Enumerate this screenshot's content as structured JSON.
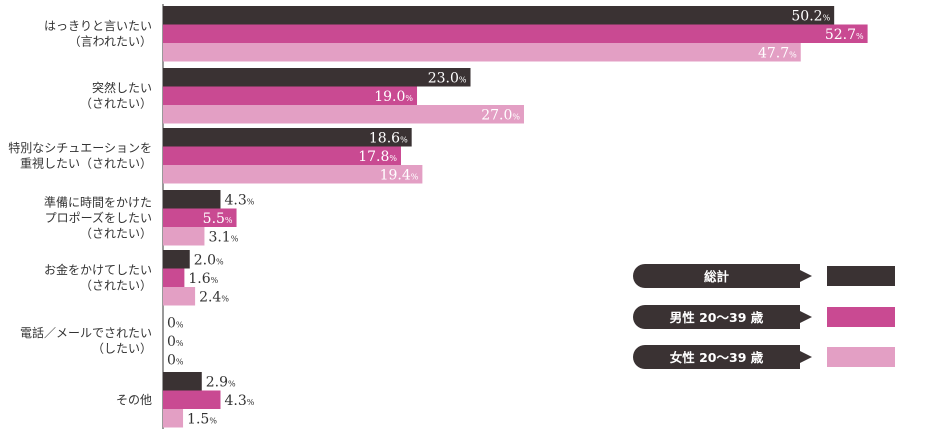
{
  "chart_data": {
    "type": "bar",
    "orientation": "horizontal",
    "unit": "%",
    "xlim": [
      0,
      55
    ],
    "grid": false,
    "legend_position": "right",
    "categories": [
      [
        "はっきりと言いたい",
        "（言われたい）"
      ],
      [
        "突然したい",
        "（されたい）"
      ],
      [
        "特別なシチュエーションを",
        "重視したい（されたい）"
      ],
      [
        "準備に時間をかけた",
        "プロポーズをしたい",
        "（されたい）"
      ],
      [
        "お金をかけてしたい",
        "（されたい）"
      ],
      [
        "電話／メールでされたい",
        "（したい）"
      ],
      [
        "その他"
      ]
    ],
    "series": [
      {
        "name": "総計",
        "color": "#3a3233",
        "values": [
          50.2,
          23.0,
          18.6,
          4.3,
          2.0,
          0,
          2.9
        ]
      },
      {
        "name": "男性 20～39 歳",
        "color": "#c94a92",
        "values": [
          52.7,
          19.0,
          17.8,
          5.5,
          1.6,
          0,
          4.3
        ]
      },
      {
        "name": "女性 20～39 歳",
        "color": "#e39fc4",
        "values": [
          47.7,
          27.0,
          19.4,
          3.1,
          2.4,
          0,
          1.5
        ]
      }
    ],
    "value_labels": [
      [
        "50.2",
        "23.0",
        "18.6",
        "4.3",
        "2.0",
        "0",
        "2.9"
      ],
      [
        "52.7",
        "19.0",
        "17.8",
        "5.5",
        "1.6",
        "0",
        "4.3"
      ],
      [
        "47.7",
        "27.0",
        "19.4",
        "3.1",
        "2.4",
        "0",
        "1.5"
      ]
    ]
  }
}
